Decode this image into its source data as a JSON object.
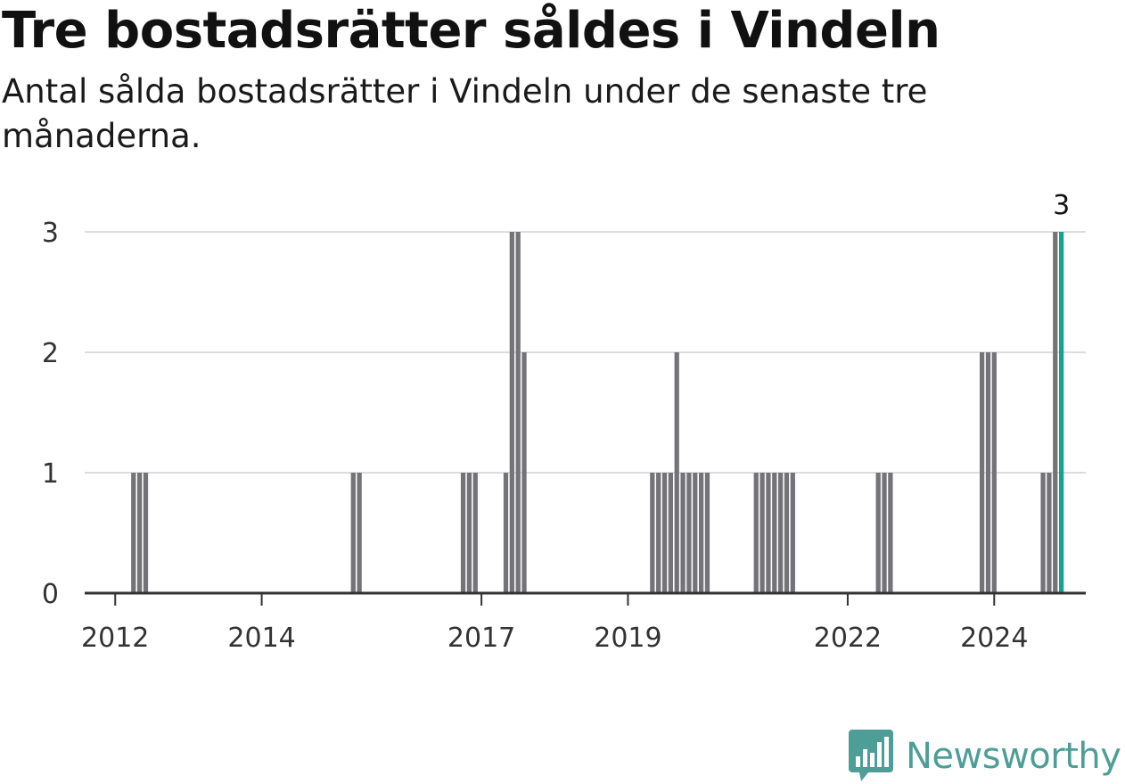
{
  "title": "Tre bostadsrätter såldes i Vindeln",
  "subtitle": "Antal sålda bostadsrätter i Vindeln under de senaste tre månaderna.",
  "brand": {
    "name": "Newsworthy",
    "icon": "bar-chart-speech-bubble-icon",
    "color": "#4d9e96"
  },
  "chart_data": {
    "type": "bar",
    "title": "Tre bostadsrätter såldes i Vindeln",
    "subtitle": "Antal sålda bostadsrätter i Vindeln under de senaste tre månaderna.",
    "xlabel": "",
    "ylabel": "",
    "ylim": [
      0,
      3
    ],
    "yticks": [
      0,
      1,
      2,
      3
    ],
    "xlim": [
      "2011-08",
      "2025-04"
    ],
    "xticks": [
      "2012",
      "2014",
      "2017",
      "2019",
      "2022",
      "2024"
    ],
    "grid": true,
    "colors": {
      "bar": "#737378",
      "highlight": "#17a094",
      "grid": "#dddddd",
      "axis": "#333333"
    },
    "series": [
      {
        "x": [
          "2012-04",
          "2012-05",
          "2012-06",
          "2015-04",
          "2015-05",
          "2016-10",
          "2016-11",
          "2016-12",
          "2017-05",
          "2017-06",
          "2017-07",
          "2017-08",
          "2019-05",
          "2019-06",
          "2019-07",
          "2019-08",
          "2019-09",
          "2019-10",
          "2019-11",
          "2019-12",
          "2020-01",
          "2020-02",
          "2020-10",
          "2020-11",
          "2020-12",
          "2021-01",
          "2021-02",
          "2021-03",
          "2021-04",
          "2022-06",
          "2022-07",
          "2022-08",
          "2023-11",
          "2023-12",
          "2024-01",
          "2024-09",
          "2024-10",
          "2024-11",
          "2024-12"
        ],
        "values": [
          1,
          1,
          1,
          1,
          1,
          1,
          1,
          1,
          1,
          3,
          3,
          2,
          1,
          1,
          1,
          1,
          2,
          1,
          1,
          1,
          1,
          1,
          1,
          1,
          1,
          1,
          1,
          1,
          1,
          1,
          1,
          1,
          2,
          2,
          2,
          1,
          1,
          3,
          3
        ]
      }
    ],
    "highlight": {
      "x": "2024-12",
      "value": 3,
      "label": "3"
    }
  }
}
